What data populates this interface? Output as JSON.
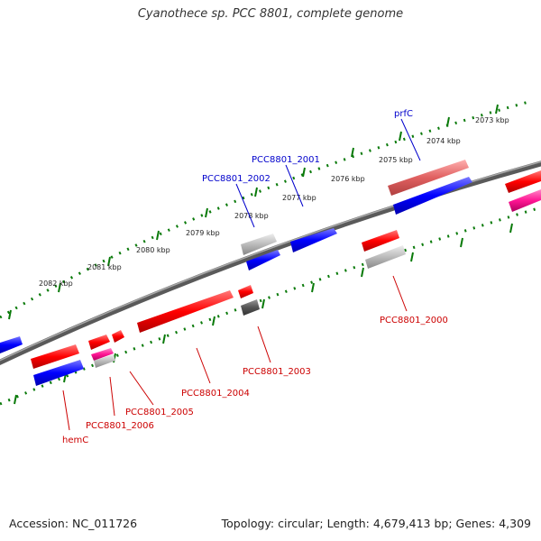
{
  "title": "Cyanothece sp. PCC 8801, complete genome",
  "footer": {
    "accession": "Accession: NC_011726",
    "summary": "Topology: circular; Length: 4,679,413 bp; Genes: 4,309"
  },
  "colors": {
    "forward_gene": "#ff0000",
    "reverse_gene": "#0000ff",
    "pseudo_gene": "#aaaaaa",
    "rna_gene": "#ff1493",
    "faded_gene": "#e06060",
    "dark_gene": "#555555",
    "backbone": "#777777",
    "ticks": "#008000",
    "label_forward": "#cc0000",
    "label_reverse": "#0000cc"
  },
  "scale": {
    "unit": "kbp",
    "labels": [
      "2073 kbp",
      "2074 kbp",
      "2075 kbp",
      "2076 kbp",
      "2077 kbp",
      "2078 kbp",
      "2079 kbp",
      "2080 kbp",
      "2081 kbp",
      "2082 kbp"
    ]
  },
  "gene_labels": [
    {
      "id": "prfC",
      "text": "prfC",
      "strand": "reverse"
    },
    {
      "id": "pcc2001",
      "text": "PCC8801_2001",
      "strand": "reverse"
    },
    {
      "id": "pcc2002",
      "text": "PCC8801_2002",
      "strand": "reverse"
    },
    {
      "id": "pcc2000",
      "text": "PCC8801_2000",
      "strand": "forward"
    },
    {
      "id": "pcc2003",
      "text": "PCC8801_2003",
      "strand": "forward"
    },
    {
      "id": "pcc2004",
      "text": "PCC8801_2004",
      "strand": "forward"
    },
    {
      "id": "pcc2005",
      "text": "PCC8801_2005",
      "strand": "forward"
    },
    {
      "id": "pcc2006",
      "text": "PCC8801_2006",
      "strand": "forward"
    },
    {
      "id": "hemC",
      "text": "hemC",
      "strand": "forward"
    }
  ]
}
